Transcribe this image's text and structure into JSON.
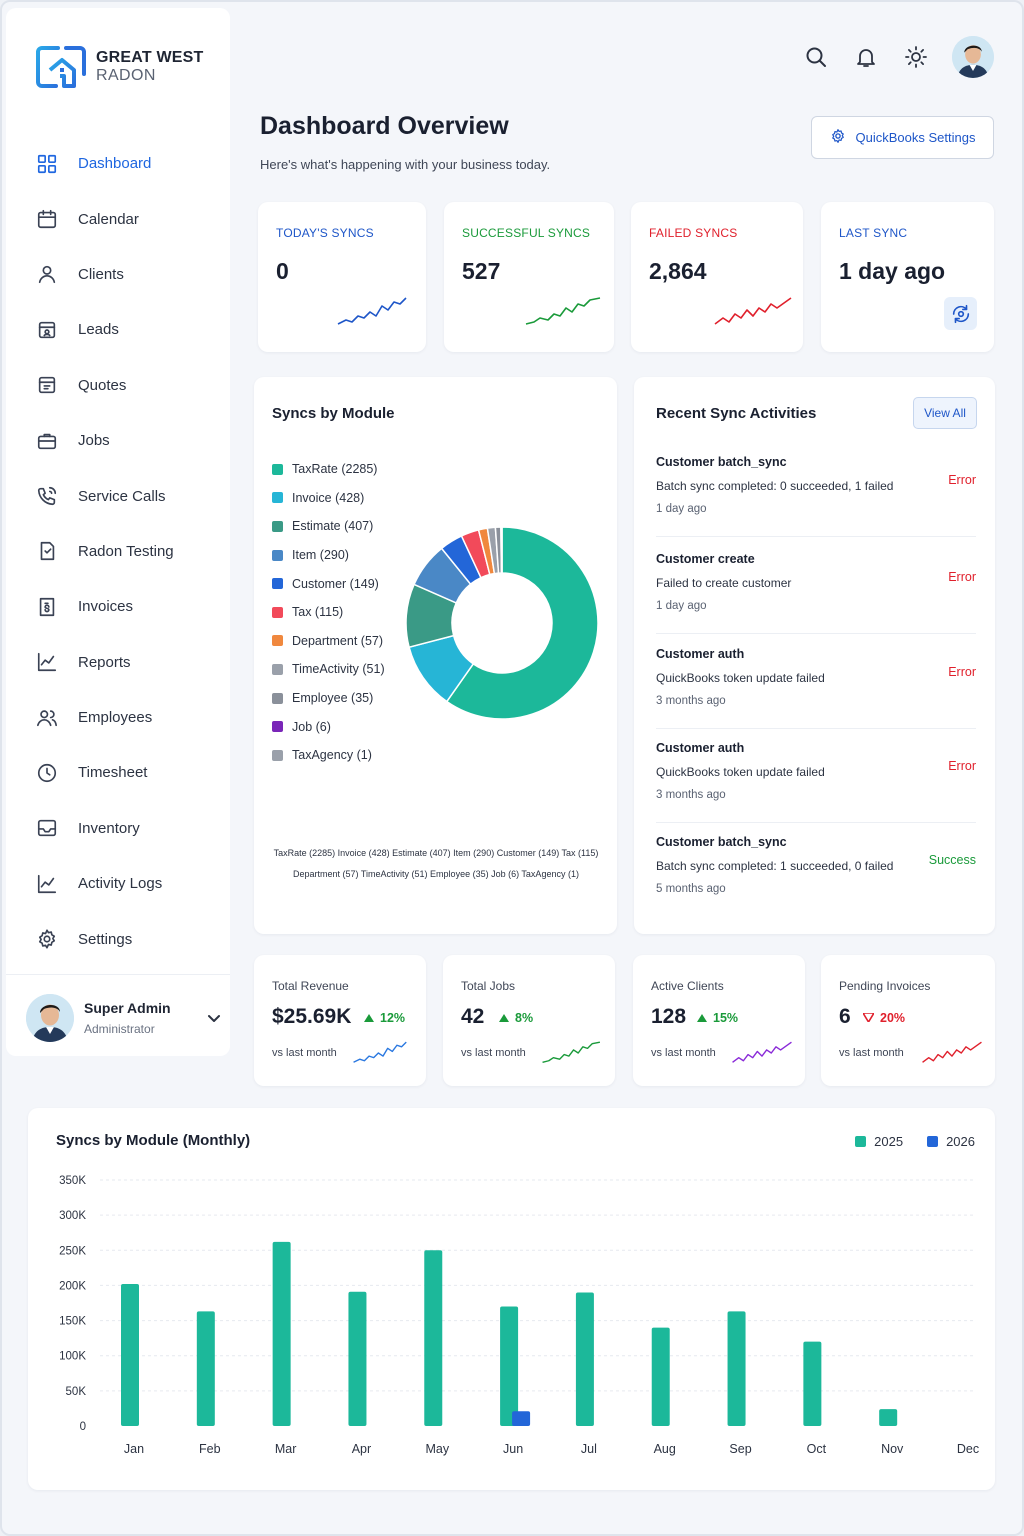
{
  "brand": {
    "line1": "GREAT WEST",
    "line2": "RADON"
  },
  "sidebar": {
    "items": [
      {
        "label": "Dashboard",
        "icon": "grid-icon",
        "active": true
      },
      {
        "label": "Calendar",
        "icon": "calendar-icon"
      },
      {
        "label": "Clients",
        "icon": "user-icon"
      },
      {
        "label": "Leads",
        "icon": "leads-icon"
      },
      {
        "label": "Quotes",
        "icon": "quotes-icon"
      },
      {
        "label": "Jobs",
        "icon": "briefcase-icon"
      },
      {
        "label": "Service Calls",
        "icon": "phone-icon"
      },
      {
        "label": "Radon Testing",
        "icon": "test-icon"
      },
      {
        "label": "Invoices",
        "icon": "invoice-icon"
      },
      {
        "label": "Reports",
        "icon": "chart-icon"
      },
      {
        "label": "Employees",
        "icon": "users-icon"
      },
      {
        "label": "Timesheet",
        "icon": "clock-icon"
      },
      {
        "label": "Inventory",
        "icon": "inbox-icon"
      },
      {
        "label": "Activity Logs",
        "icon": "activity-icon"
      },
      {
        "label": "Settings",
        "icon": "gear-icon"
      }
    ],
    "user": {
      "name": "Super Admin",
      "role": "Administrator"
    }
  },
  "header": {
    "title": "Dashboard Overview",
    "subtitle": "Here's what's happening with your business today.",
    "qb_button": "QuickBooks Settings"
  },
  "stats": [
    {
      "label": "TODAY'S SYNCS",
      "value": "0",
      "color": "#1e56c8"
    },
    {
      "label": "SUCCESSFUL SYNCS",
      "value": "527",
      "color": "#1a9a3a"
    },
    {
      "label": "FAILED SYNCS",
      "value": "2,864",
      "color": "#e0202c"
    },
    {
      "label": "LAST SYNC",
      "value": "1 day ago",
      "color": "#1e56c8"
    }
  ],
  "modules": {
    "title": "Syncs by Module",
    "items": [
      {
        "label": "TaxRate (2285)",
        "value": 2285,
        "color": "#1cb89a"
      },
      {
        "label": "Invoice (428)",
        "value": 428,
        "color": "#26b5d6"
      },
      {
        "label": "Estimate (407)",
        "value": 407,
        "color": "#3a9a86"
      },
      {
        "label": "Item (290)",
        "value": 290,
        "color": "#4a88c6"
      },
      {
        "label": "Customer (149)",
        "value": 149,
        "color": "#2366d8"
      },
      {
        "label": "Tax (115)",
        "value": 115,
        "color": "#f24a5a"
      },
      {
        "label": "Department (57)",
        "value": 57,
        "color": "#f0883e"
      },
      {
        "label": "TimeActivity (51)",
        "value": 51,
        "color": "#9aa0aa"
      },
      {
        "label": "Employee (35)",
        "value": 35,
        "color": "#8a909a"
      },
      {
        "label": "Job (6)",
        "value": 6,
        "color": "#7a26b8"
      },
      {
        "label": "TaxAgency (1)",
        "value": 1,
        "color": "#9aa0aa"
      }
    ],
    "bottom_line1": "TaxRate (2285) Invoice (428) Estimate (407) Item (290) Customer (149) Tax (115)",
    "bottom_line2": "Department (57) TimeActivity (51) Employee (35) Job (6) TaxAgency (1)"
  },
  "recent": {
    "title": "Recent Sync Activities",
    "view_all": "View All",
    "items": [
      {
        "title": "Customer batch_sync",
        "desc": "Batch sync completed: 0 succeeded, 1 failed",
        "when": "1 day ago",
        "status": "Error"
      },
      {
        "title": "Customer create",
        "desc": "Failed to create customer",
        "when": "1 day ago",
        "status": "Error"
      },
      {
        "title": "Customer auth",
        "desc": "QuickBooks token update failed",
        "when": "3 months ago",
        "status": "Error"
      },
      {
        "title": "Customer auth",
        "desc": "QuickBooks token update failed",
        "when": "3 months ago",
        "status": "Error"
      },
      {
        "title": "Customer batch_sync",
        "desc": "Batch sync completed: 1 succeeded, 0 failed",
        "when": "5 months ago",
        "status": "Success"
      }
    ],
    "colors": {
      "error": "#e0202c",
      "success": "#1a9a3a"
    }
  },
  "kpis": [
    {
      "label": "Total Revenue",
      "value": "$25.69K",
      "change": "12%",
      "direction": "up",
      "vs": "vs last month",
      "color": "#2a78e0"
    },
    {
      "label": "Total Jobs",
      "value": "42",
      "change": "8%",
      "direction": "up",
      "vs": "vs last month",
      "color": "#1a9a3a"
    },
    {
      "label": "Active Clients",
      "value": "128",
      "change": "15%",
      "direction": "up",
      "vs": "vs last month",
      "color": "#8a2ad8"
    },
    {
      "label": "Pending Invoices",
      "value": "6",
      "change": "20%",
      "direction": "down",
      "vs": "vs last month",
      "color": "#e0202c"
    }
  ],
  "chart_data": {
    "type": "bar",
    "title": "Syncs by Module (Monthly)",
    "categories": [
      "Jan",
      "Feb",
      "Mar",
      "Apr",
      "May",
      "Jun",
      "Jul",
      "Aug",
      "Sep",
      "Oct",
      "Nov",
      "Dec"
    ],
    "series": [
      {
        "name": "2025",
        "color": "#1cb89a",
        "values": [
          202000,
          163000,
          262000,
          191000,
          250000,
          170000,
          190000,
          140000,
          163000,
          120000,
          24000,
          0
        ]
      },
      {
        "name": "2026",
        "color": "#2366d8",
        "values": [
          0,
          0,
          0,
          0,
          0,
          21000,
          0,
          0,
          0,
          0,
          0,
          0
        ]
      }
    ],
    "yticks": [
      "0",
      "50K",
      "100K",
      "150K",
      "200K",
      "250K",
      "300K",
      "350K"
    ],
    "ylim": [
      0,
      350000
    ],
    "grid": true,
    "legend": "top-right"
  }
}
